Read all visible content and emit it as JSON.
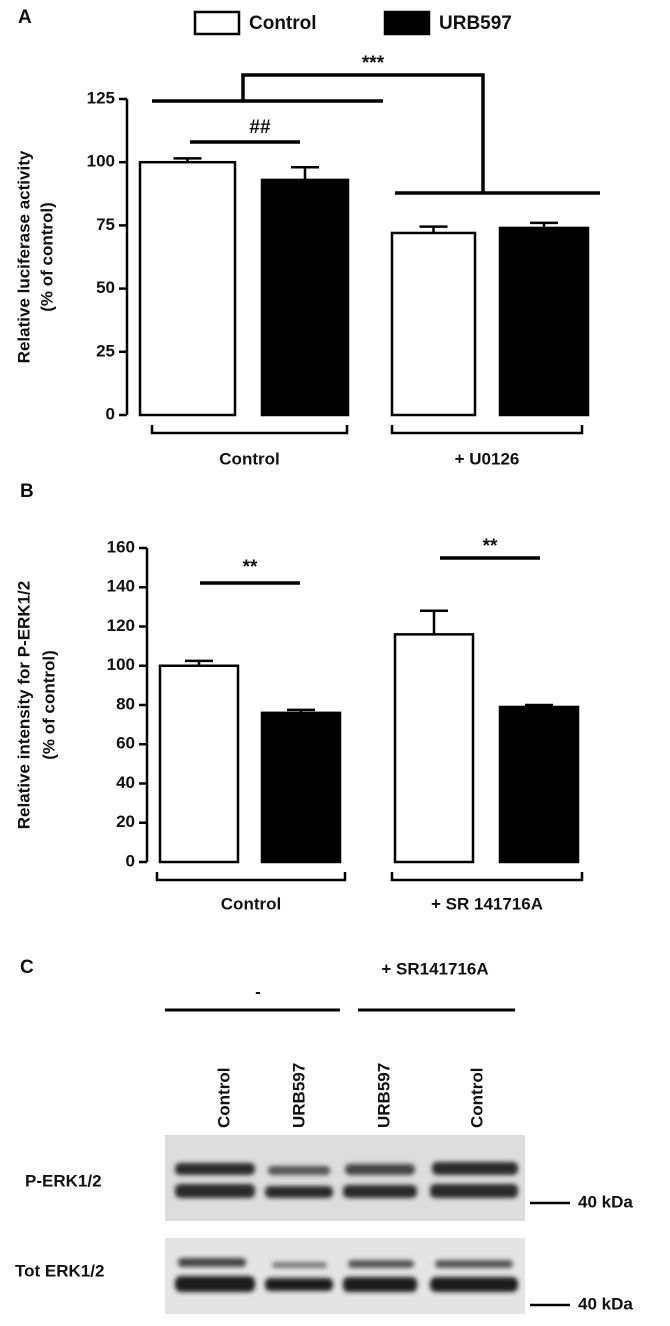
{
  "chart_data": [
    {
      "type": "bar",
      "panel_label": "A",
      "ylabel": [
        "Relative luciferase activity",
        "(% of control)"
      ],
      "categories": [
        "Control",
        "+ U0126"
      ],
      "series": [
        {
          "name": "Control",
          "color": "#ffffff",
          "values": [
            100,
            72
          ],
          "errors": [
            1.5,
            2.5
          ]
        },
        {
          "name": "URB597",
          "color": "#000000",
          "values": [
            93,
            74
          ],
          "errors": [
            5,
            2
          ]
        }
      ],
      "ylim": [
        0,
        125
      ],
      "yticks": [
        0,
        25,
        50,
        75,
        100,
        125
      ],
      "annotations": [
        "##",
        "***"
      ]
    },
    {
      "type": "bar",
      "panel_label": "B",
      "ylabel": [
        "Relative intensity for P-ERK1/2",
        "(% of control)"
      ],
      "categories": [
        "Control",
        "+ SR 141716A"
      ],
      "series": [
        {
          "color": "#ffffff",
          "values": [
            100,
            116
          ],
          "errors": [
            2.5,
            12
          ]
        },
        {
          "color": "#000000",
          "values": [
            76,
            79
          ],
          "errors": [
            1.5,
            1
          ]
        }
      ],
      "ylim": [
        0,
        160
      ],
      "yticks": [
        0,
        20,
        40,
        60,
        80,
        100,
        120,
        140,
        160
      ],
      "annotations": [
        "**",
        "**"
      ]
    }
  ],
  "blot": {
    "panel_label": "C",
    "groups": [
      "-",
      "+ SR141716A"
    ],
    "lanes": [
      "Control",
      "URB597",
      "URB597",
      "Control"
    ],
    "rows": [
      {
        "label": "P-ERK1/2",
        "marker": "40 kDa"
      },
      {
        "label": "Tot ERK1/2",
        "marker": "40 kDa"
      }
    ]
  }
}
